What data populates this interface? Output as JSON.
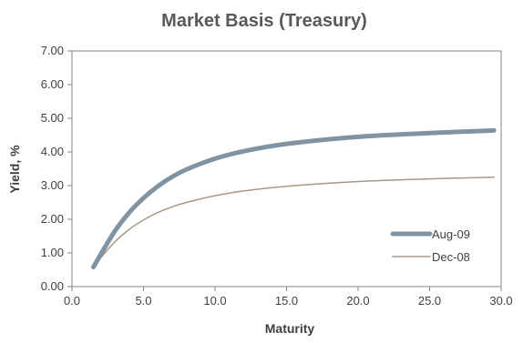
{
  "chart_data": {
    "type": "line",
    "title": "Market Basis (Treasury)",
    "xlabel": "Maturity",
    "ylabel": "Yield, %",
    "xlim": [
      0,
      30
    ],
    "ylim": [
      0,
      7
    ],
    "x_ticks": [
      "0.0",
      "5.0",
      "10.0",
      "15.0",
      "20.0",
      "25.0",
      "30.0"
    ],
    "y_ticks": [
      "0.00",
      "1.00",
      "2.00",
      "3.00",
      "4.00",
      "5.00",
      "6.00",
      "7.00"
    ],
    "grid": false,
    "legend_position": "bottom-right",
    "series": [
      {
        "name": "Aug-09",
        "color": "#7f93a3",
        "x": [
          1.5,
          2,
          3,
          4,
          5,
          6,
          7,
          8,
          10,
          12,
          15,
          20,
          25,
          29.5
        ],
        "values": [
          0.58,
          0.95,
          1.65,
          2.2,
          2.63,
          2.98,
          3.26,
          3.48,
          3.8,
          4.02,
          4.24,
          4.45,
          4.56,
          4.64
        ]
      },
      {
        "name": "Dec-08",
        "color": "#a89888",
        "x": [
          1.5,
          2,
          3,
          4,
          5,
          6,
          7,
          8,
          10,
          12,
          15,
          20,
          25,
          29.5
        ],
        "values": [
          0.58,
          0.85,
          1.33,
          1.7,
          1.98,
          2.2,
          2.37,
          2.5,
          2.7,
          2.84,
          2.98,
          3.12,
          3.2,
          3.25
        ]
      }
    ]
  }
}
